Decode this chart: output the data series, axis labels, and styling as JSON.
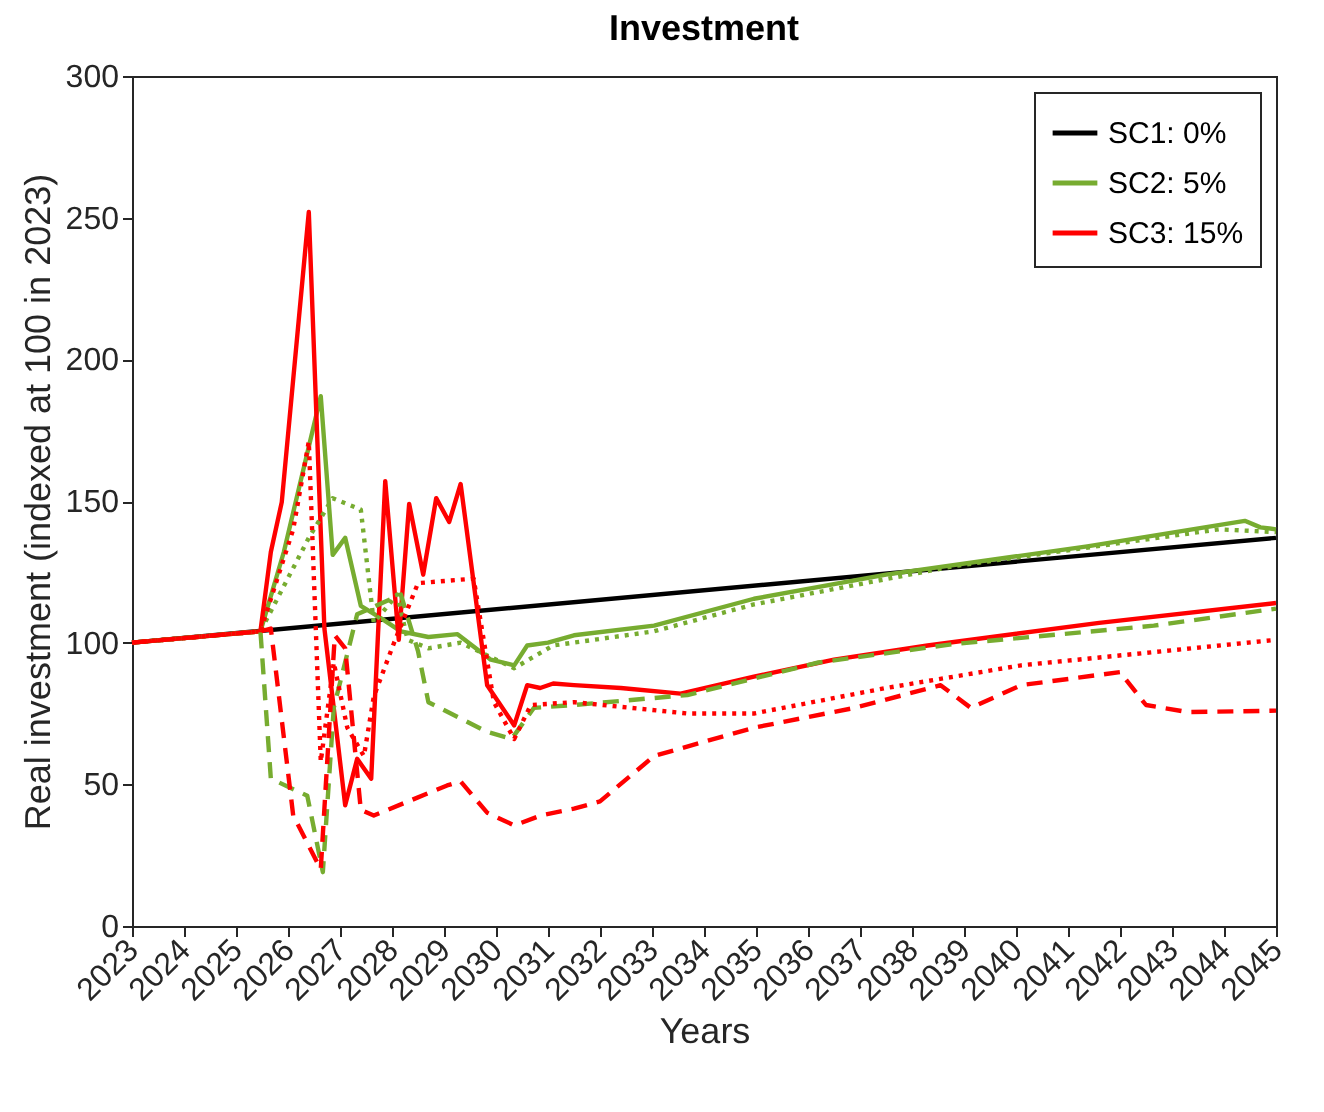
{
  "chart_data": {
    "type": "line",
    "title": "Investment",
    "xlabel": "Years",
    "ylabel": "Real investment (indexed at 100 in 2023)",
    "xlim": [
      2023,
      2045
    ],
    "xticks": [
      2023,
      2024,
      2025,
      2026,
      2027,
      2028,
      2029,
      2030,
      2031,
      2032,
      2033,
      2034,
      2035,
      2036,
      2037,
      2038,
      2039,
      2040,
      2041,
      2042,
      2043,
      2044,
      2045
    ],
    "ylim": [
      0,
      300
    ],
    "yticks": [
      0,
      50,
      100,
      150,
      200,
      250,
      300
    ],
    "grid": false,
    "legend": "top right",
    "series": [
      {
        "name": "SC1: 0%",
        "color": "#000000",
        "line_style": "solid",
        "x": [
          2023,
          2045
        ],
        "values": [
          100,
          137
        ]
      },
      {
        "name": "SC2: 5%",
        "color": "#77ac30",
        "line_style": "solid",
        "x": [
          2023,
          2025.47,
          2025.92,
          2026.63,
          2026.86,
          2027.1,
          2027.4,
          2027.8,
          2028.17,
          2028.7,
          2029.26,
          2029.9,
          2030.35,
          2030.6,
          2031,
          2031.5,
          2033.04,
          2034.96,
          2037.5,
          2041.37,
          2044.4,
          2044.7,
          2045
        ],
        "values": [
          100,
          104,
          132,
          187,
          131,
          137,
          113,
          108.5,
          104,
          102,
          103,
          94,
          92,
          99,
          100,
          102.6,
          106,
          115.5,
          124,
          134,
          143,
          140.7,
          140
        ]
      },
      {
        "name": "SC3: 15%",
        "color": "#ff0000",
        "line_style": "solid",
        "x": [
          2023,
          2025.47,
          2025.67,
          2025.88,
          2026.4,
          2026.7,
          2027.1,
          2027.33,
          2027.6,
          2027.87,
          2028.13,
          2028.33,
          2028.6,
          2028.85,
          2029.1,
          2029.32,
          2029.6,
          2029.83,
          2030.35,
          2030.6,
          2030.85,
          2031.1,
          2031.5,
          2032.4,
          2033.55,
          2034.96,
          2036.5,
          2038.3,
          2041.6,
          2045
        ],
        "values": [
          100,
          104,
          132,
          149.6,
          252,
          105,
          42.6,
          59,
          52,
          157,
          101,
          149,
          124,
          151,
          142.6,
          156,
          117,
          85,
          70.8,
          85,
          84,
          85.6,
          85,
          84,
          82,
          88,
          94,
          99,
          107,
          114
        ]
      },
      {
        "name": null,
        "color": "#77ac30",
        "line_style": "dotted",
        "x": [
          2023,
          2025.47,
          2026.4,
          2026.86,
          2027.4,
          2027.65,
          2028.1,
          2028.3,
          2028.7,
          2029.32,
          2029.83,
          2030.35,
          2031.1,
          2033.04,
          2034.96,
          2038.8,
          2043.9,
          2045
        ],
        "values": [
          100,
          104,
          137,
          151,
          147,
          107,
          117,
          101,
          98,
          100,
          95.5,
          91,
          99,
          104,
          113.5,
          127,
          140,
          139
        ]
      },
      {
        "name": null,
        "color": "#77ac30",
        "line_style": "dashed",
        "x": [
          2023,
          2025.47,
          2025.67,
          2026.37,
          2026.67,
          2026.88,
          2027.33,
          2028.17,
          2028.5,
          2028.7,
          2029.83,
          2030.3,
          2030.73,
          2031.5,
          2033.68,
          2036.2,
          2038.8,
          2042.65,
          2045
        ],
        "values": [
          100,
          104,
          52,
          46,
          19,
          77,
          110,
          117,
          97,
          79,
          68.5,
          66,
          77,
          78,
          81.5,
          93,
          99.5,
          106,
          112
        ]
      },
      {
        "name": null,
        "color": "#ff0000",
        "line_style": "dotted",
        "x": [
          2023,
          2025.47,
          2026.1,
          2026.4,
          2026.63,
          2026.88,
          2027.14,
          2027.46,
          2027.65,
          2028.04,
          2028.5,
          2029.57,
          2029.96,
          2030.35,
          2030.67,
          2031.5,
          2033.68,
          2034.96,
          2037.5,
          2040.1,
          2045
        ],
        "values": [
          100,
          104,
          140,
          171,
          58,
          93,
          70,
          60,
          81,
          100,
          121,
          122.6,
          79,
          66,
          78,
          79,
          75,
          75,
          84,
          92,
          101
        ]
      },
      {
        "name": null,
        "color": "#ff0000",
        "line_style": "dashed",
        "x": [
          2023,
          2025.47,
          2025.67,
          2026.1,
          2026.63,
          2026.9,
          2027.1,
          2027.4,
          2027.65,
          2029.06,
          2029.32,
          2029.83,
          2030.35,
          2030.86,
          2031.5,
          2032,
          2033.04,
          2034.96,
          2036.9,
          2038.55,
          2039.13,
          2040.1,
          2042,
          2042.5,
          2043.3,
          2045
        ],
        "values": [
          100,
          104,
          105,
          39,
          20,
          102.6,
          98,
          41,
          39,
          49.6,
          51,
          40,
          35.5,
          39,
          41.4,
          44,
          60,
          70,
          77,
          85,
          77,
          85,
          89.6,
          78,
          75.5,
          76
        ]
      }
    ]
  }
}
